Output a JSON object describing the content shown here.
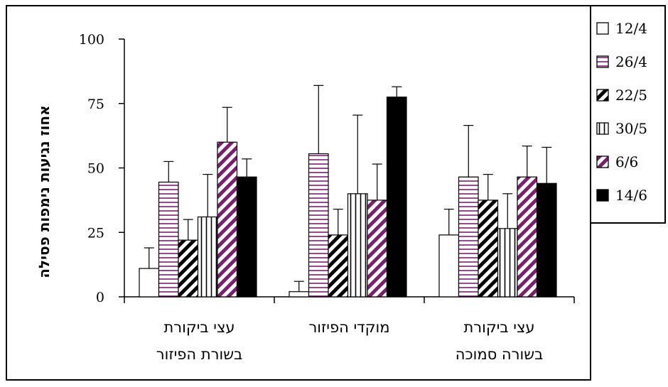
{
  "chart_data": {
    "type": "bar",
    "ylabel": "אחוז נגיעות נימפות פסילה",
    "ylim": [
      0,
      100
    ],
    "yticks": [
      "0",
      "25",
      "50",
      "75",
      "100"
    ],
    "categories": [
      [
        "עצי ביקורת",
        "בשורת הפיזור"
      ],
      [
        "מוקדי הפיזור"
      ],
      [
        "עצי ביקורת",
        "בשורה סמוכה"
      ]
    ],
    "series": [
      {
        "name": "12/4",
        "values": [
          11,
          2,
          24
        ],
        "errors": [
          8,
          4,
          10
        ],
        "pattern": "white"
      },
      {
        "name": "26/4",
        "values": [
          44.5,
          55.5,
          46.5
        ],
        "errors": [
          8,
          26.5,
          20
        ],
        "pattern": "hlines"
      },
      {
        "name": "22/5",
        "values": [
          22,
          24,
          37.5
        ],
        "errors": [
          8,
          10,
          10
        ],
        "pattern": "diag-black"
      },
      {
        "name": "30/5",
        "values": [
          31,
          40,
          26.5
        ],
        "errors": [
          16.5,
          30.5,
          13.5
        ],
        "pattern": "vlines"
      },
      {
        "name": "6/6",
        "values": [
          60,
          37.5,
          46.5
        ],
        "errors": [
          13.5,
          14,
          12
        ],
        "pattern": "diag-purple"
      },
      {
        "name": "14/6",
        "values": [
          46.5,
          77.5,
          44
        ],
        "errors": [
          7,
          4,
          14
        ],
        "pattern": "black"
      }
    ],
    "legend_position": "right",
    "grid": false,
    "colors": {
      "accent": "#7a1f6e",
      "stroke": "#000000"
    }
  }
}
